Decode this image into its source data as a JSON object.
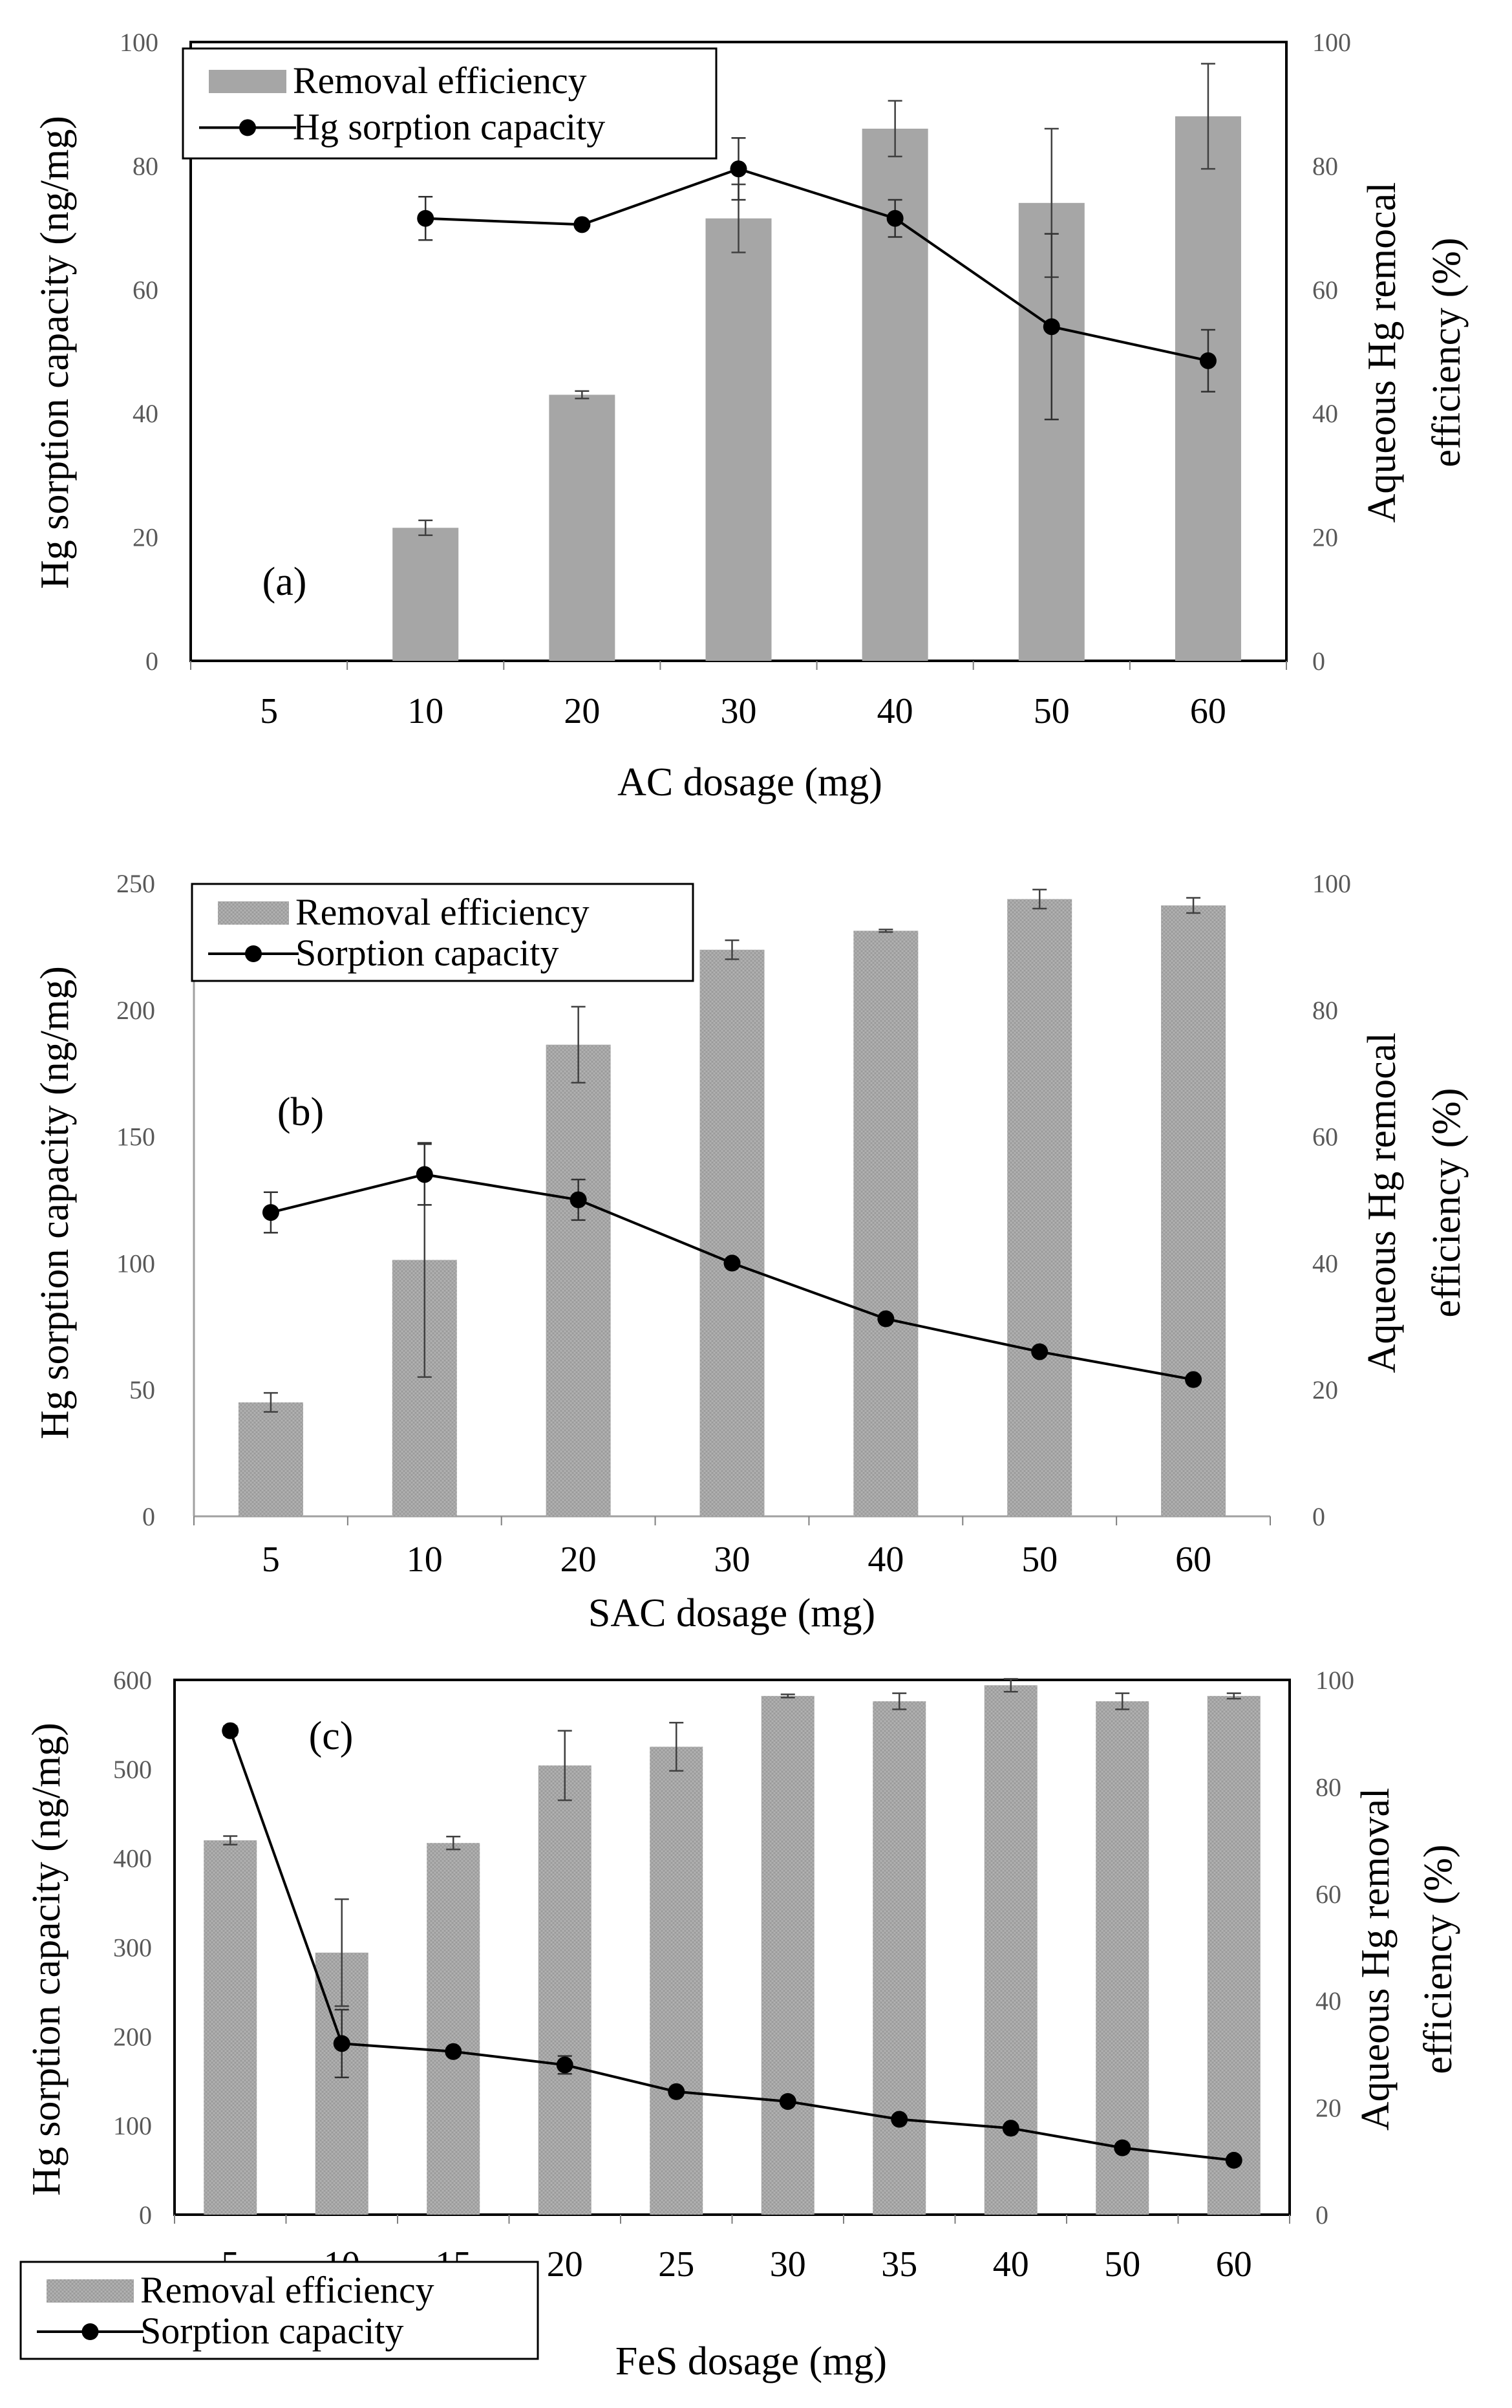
{
  "chart_data": [
    {
      "id": "a",
      "type": "bar+line",
      "panel_label": "(a)",
      "categories": [
        "5",
        "10",
        "20",
        "30",
        "40",
        "50",
        "60"
      ],
      "bar_series": {
        "name": "Removal efficiency",
        "axis": "right",
        "values": [
          null,
          21.5,
          43,
          71.5,
          86,
          74,
          88
        ],
        "errors": [
          null,
          1.2,
          0.6,
          5.5,
          4.5,
          12,
          8.5
        ]
      },
      "line_series": {
        "name": "Hg sorption capacity",
        "axis": "left",
        "values": [
          null,
          71.5,
          70.5,
          79.5,
          71.5,
          54,
          48.5
        ],
        "errors": [
          null,
          3.5,
          0.5,
          5,
          3,
          15,
          5
        ]
      },
      "xlabel": "AC dosage (mg)",
      "ylabel_left": "Hg sorption capacity (ng/mg)",
      "ylabel_right": [
        "Aqueous Hg remocal",
        "efficiency (%)"
      ],
      "yleft": {
        "min": 0,
        "max": 100,
        "ticks": [
          "0",
          "20",
          "40",
          "60",
          "80",
          "100"
        ]
      },
      "yright": {
        "min": 0,
        "max": 100,
        "ticks": [
          "0",
          "20",
          "40",
          "60",
          "80",
          "100"
        ]
      },
      "legend_position": "top-left"
    },
    {
      "id": "b",
      "type": "bar+line",
      "panel_label": "(b)",
      "categories": [
        "5",
        "10",
        "20",
        "30",
        "40",
        "50",
        "60"
      ],
      "bar_series": {
        "name": "Removal efficiency",
        "axis": "right",
        "values": [
          18,
          40.5,
          74.5,
          89.5,
          92.5,
          97.5,
          96.5
        ],
        "errors": [
          1.5,
          18.5,
          6,
          1.5,
          0.2,
          1.5,
          1.2
        ]
      },
      "line_series": {
        "name": "Sorption capacity",
        "axis": "left",
        "values": [
          120,
          135,
          125,
          100,
          78,
          65,
          54
        ],
        "errors": [
          8,
          12,
          8,
          0,
          0,
          0,
          0
        ]
      },
      "xlabel": "SAC dosage (mg)",
      "ylabel_left": "Hg sorption capacity (ng/mg)",
      "ylabel_right": [
        "Aqueous Hg remocal",
        "efficiency (%)"
      ],
      "yleft": {
        "min": 0,
        "max": 250,
        "ticks": [
          "0",
          "50",
          "100",
          "150",
          "200",
          "250"
        ]
      },
      "yright": {
        "min": 0,
        "max": 100,
        "ticks": [
          "0",
          "20",
          "40",
          "60",
          "80",
          "100"
        ]
      },
      "legend_position": "top-left"
    },
    {
      "id": "c",
      "type": "bar+line",
      "panel_label": "(c)",
      "categories": [
        "5",
        "10",
        "15",
        "20",
        "25",
        "30",
        "35",
        "40",
        "50",
        "60"
      ],
      "bar_series": {
        "name": "Removal efficiency",
        "axis": "right",
        "values": [
          70,
          49,
          69.5,
          84,
          87.5,
          97,
          96,
          99,
          96,
          97
        ],
        "errors": [
          0.8,
          10,
          1.2,
          6.5,
          4.5,
          0.3,
          1.5,
          1.2,
          1.5,
          0.5
        ]
      },
      "line_series": {
        "name": "Sorption capacity",
        "axis": "left",
        "values": [
          543,
          192,
          183,
          168,
          138,
          127,
          107,
          97,
          75,
          61
        ],
        "errors": [
          5,
          38,
          0,
          10,
          0,
          0,
          0,
          0,
          0,
          0
        ]
      },
      "xlabel": "FeS dosage (mg)",
      "ylabel_left": "Hg sorption capacity (ng/mg)",
      "ylabel_right": [
        "Aqueous Hg removal",
        "efficiency (%)"
      ],
      "yleft": {
        "min": 0,
        "max": 600,
        "ticks": [
          "0",
          "100",
          "200",
          "300",
          "400",
          "500",
          "600"
        ]
      },
      "yright": {
        "min": 0,
        "max": 100,
        "ticks": [
          "0",
          "20",
          "40",
          "60",
          "80",
          "100"
        ]
      },
      "legend_position": "bottom-left"
    }
  ]
}
